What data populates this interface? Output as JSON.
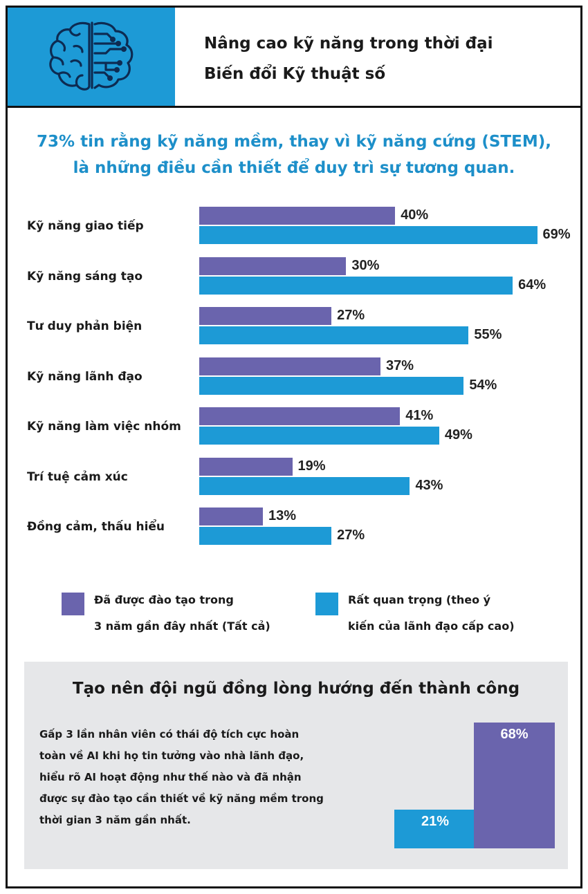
{
  "header": {
    "title_line1": "Nâng cao kỹ năng trong thời đại",
    "title_line2": "Biến đổi Kỹ thuật số",
    "icon": "brain-circuit-icon"
  },
  "headline": {
    "line1": "73% tin rằng kỹ năng mềm, thay vì kỹ năng cứng (STEM),",
    "line2": "là những điều cần thiết để duy trì sự tương quan."
  },
  "chart_data": {
    "type": "bar",
    "orientation": "horizontal",
    "categories": [
      "Kỹ năng giao tiếp",
      "Kỹ năng sáng tạo",
      "Tư duy phản biện",
      "Kỹ năng lãnh đạo",
      "Kỹ năng làm việc nhóm",
      "Trí tuệ cảm xúc",
      "Đồng cảm, thấu hiểu"
    ],
    "series": [
      {
        "name": "Đã được đào tạo trong 3 năm gần đây nhất (Tất cả)",
        "legend_line1": "Đã được đào tạo trong",
        "legend_line2": "3 năm gần đây nhất (Tất cả)",
        "color": "#6a64ad",
        "values": [
          40,
          30,
          27,
          37,
          41,
          19,
          13
        ],
        "labels": [
          "40%",
          "30%",
          "27%",
          "37%",
          "41%",
          "19%",
          "13%"
        ]
      },
      {
        "name": "Rất quan trọng (theo ý kiến của lãnh đạo cấp cao)",
        "legend_line1": "Rất quan trọng (theo ý",
        "legend_line2": "kiến của lãnh đạo cấp cao)",
        "color": "#1d9ad6",
        "values": [
          69,
          64,
          55,
          54,
          49,
          43,
          27
        ],
        "labels": [
          "69%",
          "64%",
          "55%",
          "54%",
          "49%",
          "43%",
          "27%"
        ]
      }
    ],
    "xlim": [
      0,
      70
    ],
    "grid": false,
    "legend_position": "bottom"
  },
  "panel": {
    "title": "Tạo nên đội ngũ đồng lòng hướng đến thành công",
    "body_lines": [
      "Gấp 3 lần nhân viên có thái độ tích cực hoàn",
      "toàn về AI khi họ tin tưởng vào nhà lãnh đạo,",
      "hiểu rõ AI hoạt động như thế nào và đã nhận",
      "được sự đào tạo cần thiết về kỹ năng mềm trong",
      "thời gian 3 năm gần nhất."
    ],
    "mini_chart": {
      "type": "bar",
      "values": [
        21,
        68
      ],
      "labels": [
        "21%",
        "68%"
      ],
      "colors": [
        "#1d9ad6",
        "#6a64ad"
      ]
    }
  }
}
